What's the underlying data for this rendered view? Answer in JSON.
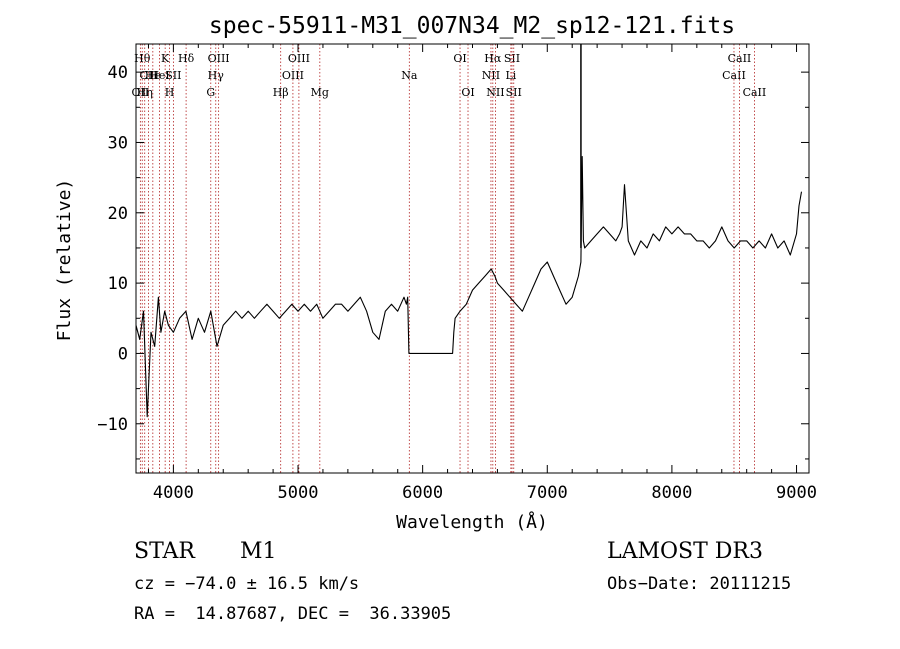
{
  "chart_data": {
    "type": "line",
    "title": "spec-55911-M31_007N34_M2_sp12-121.fits",
    "xlabel": "Wavelength (Å)",
    "ylabel": "Flux (relative)",
    "xlim": [
      3700,
      9100
    ],
    "ylim": [
      -17,
      44
    ],
    "xticks": [
      4000,
      5000,
      6000,
      7000,
      8000,
      9000
    ],
    "yticks": [
      -10,
      0,
      10,
      20,
      30,
      40
    ],
    "xtick_labels": [
      "4000",
      "5000",
      "6000",
      "7000",
      "8000",
      "9000"
    ],
    "ytick_labels": [
      "−10",
      "0",
      "10",
      "20",
      "30",
      "40"
    ],
    "series": [
      {
        "name": "spectrum",
        "x": [
          3700,
          3730,
          3760,
          3790,
          3820,
          3850,
          3880,
          3900,
          3930,
          3960,
          4000,
          4050,
          4100,
          4150,
          4200,
          4250,
          4300,
          4350,
          4400,
          4450,
          4500,
          4550,
          4600,
          4650,
          4700,
          4750,
          4800,
          4850,
          4900,
          4950,
          5000,
          5050,
          5100,
          5150,
          5200,
          5250,
          5300,
          5350,
          5400,
          5450,
          5500,
          5550,
          5600,
          5650,
          5700,
          5750,
          5800,
          5850,
          5870,
          5880,
          5890,
          6000,
          6100,
          6200,
          6240,
          6250,
          6260,
          6300,
          6350,
          6400,
          6450,
          6500,
          6550,
          6580,
          6600,
          6650,
          6700,
          6750,
          6800,
          6850,
          6900,
          6950,
          7000,
          7050,
          7100,
          7150,
          7200,
          7250,
          7270,
          7280,
          7290,
          7300,
          7350,
          7400,
          7450,
          7500,
          7550,
          7580,
          7600,
          7620,
          7650,
          7700,
          7750,
          7800,
          7850,
          7900,
          7950,
          8000,
          8050,
          8100,
          8150,
          8200,
          8250,
          8300,
          8350,
          8400,
          8450,
          8500,
          8550,
          8600,
          8650,
          8700,
          8750,
          8800,
          8850,
          8900,
          8950,
          9000,
          9020,
          9040
        ],
        "y": [
          4,
          2,
          6,
          -9,
          3,
          1,
          8,
          3,
          6,
          4,
          3,
          5,
          6,
          2,
          5,
          3,
          6,
          1,
          4,
          5,
          6,
          5,
          6,
          5,
          6,
          7,
          6,
          5,
          6,
          7,
          6,
          7,
          6,
          7,
          5,
          6,
          7,
          7,
          6,
          7,
          8,
          6,
          3,
          2,
          6,
          7,
          6,
          8,
          7,
          8,
          0,
          0,
          0,
          0,
          0,
          3,
          5,
          6,
          7,
          9,
          10,
          11,
          12,
          11,
          10,
          9,
          8,
          7,
          6,
          8,
          10,
          12,
          13,
          11,
          9,
          7,
          8,
          11,
          13,
          28,
          16,
          15,
          16,
          17,
          18,
          17,
          16,
          17,
          18,
          24,
          16,
          14,
          16,
          15,
          17,
          16,
          18,
          17,
          18,
          17,
          17,
          16,
          16,
          15,
          16,
          18,
          16,
          15,
          16,
          16,
          15,
          16,
          15,
          17,
          15,
          16,
          14,
          17,
          21,
          23
        ]
      }
    ],
    "spikes": [
      {
        "x": 7270,
        "y": 44
      }
    ],
    "lines": [
      {
        "x": 3750,
        "label": "Hθ",
        "row": 0
      },
      {
        "x": 3735,
        "label": "OII",
        "row": 2
      },
      {
        "x": 3770,
        "label": "Hη",
        "row": 2
      },
      {
        "x": 3800,
        "label": "CH",
        "row": 1
      },
      {
        "x": 3835,
        "label": "He",
        "row": 1
      },
      {
        "x": 3889,
        "label": "HeI",
        "row": 1
      },
      {
        "x": 3934,
        "label": "K",
        "row": 0
      },
      {
        "x": 3969,
        "label": "H",
        "row": 2
      },
      {
        "x": 4000,
        "label": "SII",
        "row": 1
      },
      {
        "x": 4102,
        "label": "Hδ",
        "row": 0
      },
      {
        "x": 4300,
        "label": "G",
        "row": 2
      },
      {
        "x": 4340,
        "label": "Hγ",
        "row": 1
      },
      {
        "x": 4363,
        "label": "OIII",
        "row": 0
      },
      {
        "x": 4861,
        "label": "Hβ",
        "row": 2
      },
      {
        "x": 4959,
        "label": "OIII",
        "row": 1
      },
      {
        "x": 5007,
        "label": "OIII",
        "row": 0
      },
      {
        "x": 5175,
        "label": "Mg",
        "row": 2
      },
      {
        "x": 5893,
        "label": "Na",
        "row": 1
      },
      {
        "x": 6300,
        "label": "OI",
        "row": 0
      },
      {
        "x": 6364,
        "label": "OI",
        "row": 2
      },
      {
        "x": 6548,
        "label": "NII",
        "row": 1
      },
      {
        "x": 6563,
        "label": "Hα",
        "row": 0
      },
      {
        "x": 6584,
        "label": "NII",
        "row": 2
      },
      {
        "x": 6708,
        "label": "Li",
        "row": 1
      },
      {
        "x": 6717,
        "label": "SII",
        "row": 0
      },
      {
        "x": 6731,
        "label": "SII",
        "row": 2
      },
      {
        "x": 8498,
        "label": "CaII",
        "row": 1
      },
      {
        "x": 8542,
        "label": "CaII",
        "row": 0
      },
      {
        "x": 8662,
        "label": "CaII",
        "row": 2
      }
    ]
  },
  "info": {
    "class": "STAR",
    "subclass": "M1",
    "survey": "LAMOST DR3",
    "cz": "cz = −74.0 ± 16.5 km/s",
    "obs_date": "Obs−Date: 20111215",
    "coords": "RA =  14.87687, DEC =  36.33905"
  }
}
